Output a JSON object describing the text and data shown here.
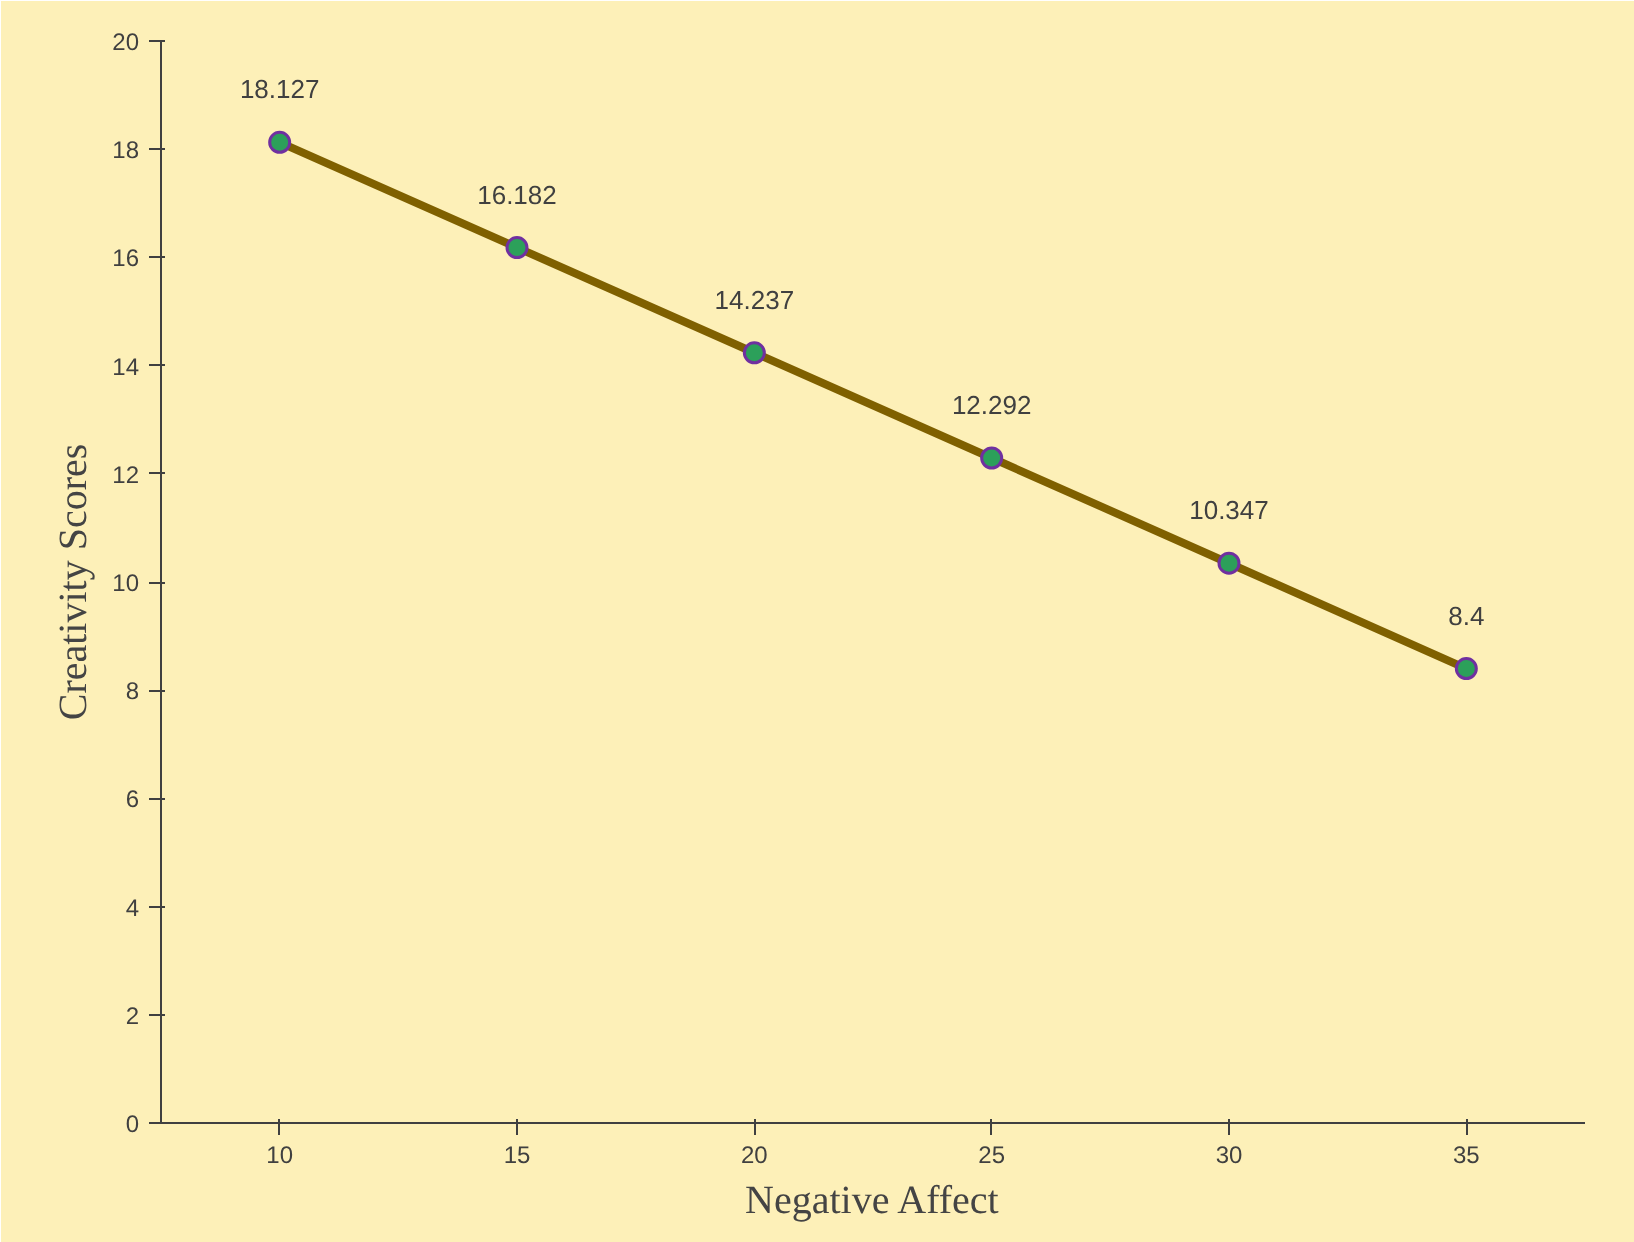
{
  "chart_data": {
    "type": "line",
    "xlabel": "Negative Affect",
    "ylabel": "Creativity Scores",
    "categories": [
      "10",
      "15",
      "20",
      "25",
      "30",
      "35"
    ],
    "series": [
      {
        "color": "#7f6000",
        "values": [
          18.127,
          16.182,
          14.237,
          12.292,
          10.347,
          8.4
        ]
      }
    ],
    "ylim": [
      0,
      20
    ],
    "yticks": [
      0,
      2,
      4,
      6,
      8,
      10,
      12,
      14,
      16,
      18,
      20
    ],
    "data_labels": true,
    "marker": "circle",
    "grid": false
  }
}
